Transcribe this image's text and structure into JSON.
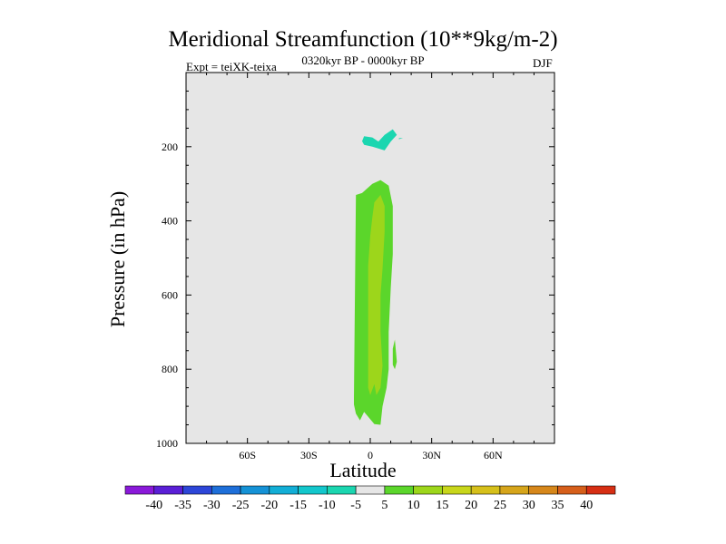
{
  "chart_data": {
    "type": "contour",
    "title": "Meridional Streamfunction (10**9kg/m-2)",
    "experiment_label": "Expt = teiXK-teixa",
    "period_label": "0320kyr BP - 0000kyr BP",
    "season_label": "DJF",
    "xlabel": "Latitude",
    "ylabel": "Pressure (in hPa)",
    "x_axis": {
      "range": [
        -90,
        90
      ],
      "ticks": [
        {
          "value": -60,
          "label": "60S"
        },
        {
          "value": -30,
          "label": "30S"
        },
        {
          "value": 0,
          "label": "0"
        },
        {
          "value": 30,
          "label": "30N"
        },
        {
          "value": 60,
          "label": "60N"
        }
      ]
    },
    "y_axis": {
      "range": [
        1000,
        0
      ],
      "ticks": [
        200,
        400,
        600,
        800,
        1000
      ],
      "labels": [
        "200",
        "400",
        "600",
        "800",
        "1000"
      ]
    },
    "background_color": "#e6e6e6",
    "colorbar": {
      "labels": [
        "-40",
        "-35",
        "-30",
        "-25",
        "-20",
        "-15",
        "-10",
        "-5",
        "5",
        "10",
        "15",
        "20",
        "25",
        "30",
        "35",
        "40"
      ],
      "colors": [
        "#8a19d9",
        "#5a1fd6",
        "#2d46d8",
        "#1e6fd9",
        "#1592d6",
        "#12aed6",
        "#13c7cc",
        "#1bd6b0",
        "#e6e6e6",
        "#5bd62b",
        "#9dd61b",
        "#c8d61b",
        "#d6c01b",
        "#d6a51b",
        "#d6871b",
        "#d65f1b",
        "#d62f14"
      ]
    },
    "regions": [
      {
        "level": "-10 to -5",
        "color": "#1bd6b0",
        "points": [
          [
            -3,
            172
          ],
          [
            1,
            175
          ],
          [
            4,
            186
          ],
          [
            7,
            168
          ],
          [
            11,
            153
          ],
          [
            13,
            168
          ],
          [
            10,
            186
          ],
          [
            7,
            210
          ],
          [
            1,
            200
          ],
          [
            -3,
            195
          ],
          [
            -4,
            185
          ]
        ]
      },
      {
        "level": "-10 to -5",
        "color": "#1bd6b0",
        "points": [
          [
            14,
            177
          ],
          [
            16,
            176
          ],
          [
            14,
            180
          ]
        ]
      },
      {
        "level": "5 to 10",
        "color": "#5bd62b",
        "points": [
          [
            -8,
            880
          ],
          [
            -7,
            330
          ],
          [
            -4,
            325
          ],
          [
            1,
            300
          ],
          [
            5,
            290
          ],
          [
            9,
            305
          ],
          [
            11,
            360
          ],
          [
            11,
            490
          ],
          [
            10,
            580
          ],
          [
            9,
            700
          ],
          [
            9,
            800
          ],
          [
            8,
            850
          ],
          [
            6,
            900
          ],
          [
            5,
            950
          ],
          [
            2,
            948
          ],
          [
            0,
            935
          ],
          [
            -3,
            915
          ],
          [
            -5,
            938
          ],
          [
            -7,
            920
          ],
          [
            -8,
            895
          ]
        ]
      },
      {
        "level": "5 to 10",
        "color": "#5bd62b",
        "points": [
          [
            11,
            745
          ],
          [
            12,
            720
          ],
          [
            13,
            780
          ],
          [
            12,
            800
          ],
          [
            11,
            788
          ]
        ]
      },
      {
        "level": "10 to 15",
        "color": "#9dd61b",
        "points": [
          [
            -1,
            520
          ],
          [
            0,
            440
          ],
          [
            1,
            390
          ],
          [
            2,
            350
          ],
          [
            5,
            330
          ],
          [
            7,
            360
          ],
          [
            7,
            430
          ],
          [
            6,
            530
          ],
          [
            5,
            600
          ],
          [
            5,
            700
          ],
          [
            6,
            790
          ],
          [
            5,
            850
          ],
          [
            3,
            870
          ],
          [
            2,
            840
          ],
          [
            0,
            870
          ],
          [
            -1,
            850
          ],
          [
            -1,
            800
          ],
          [
            -1,
            720
          ],
          [
            -1,
            630
          ]
        ]
      }
    ]
  }
}
